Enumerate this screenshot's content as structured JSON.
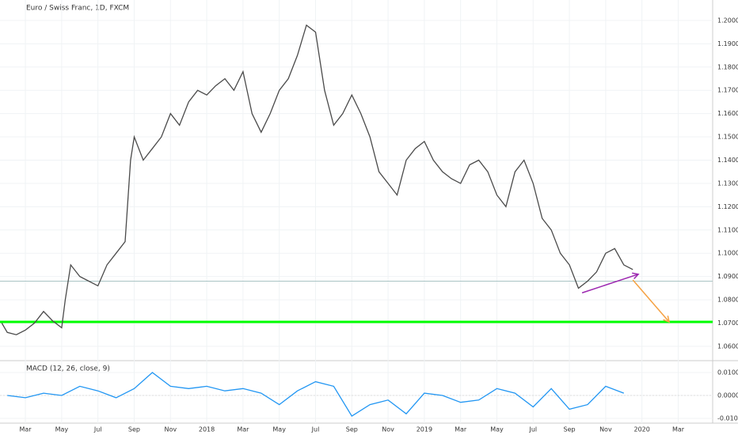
{
  "chart_data": [
    {
      "type": "line",
      "title": "Euro / Swiss Franc, 1D, FXCM",
      "x": [
        0.7,
        1.0,
        1.5,
        2.0,
        2.5,
        3.0,
        3.5,
        4.0,
        4.2,
        4.5,
        5.0,
        5.5,
        6.0,
        6.5,
        7.0,
        7.5,
        7.8,
        8.0,
        8.5,
        9.0,
        9.5,
        10.0,
        10.5,
        11.0,
        11.5,
        12.0,
        12.5,
        13.0,
        13.5,
        14.0,
        14.5,
        15.0,
        15.5,
        16.0,
        16.5,
        17.0,
        17.5,
        18.0,
        18.5,
        19.0,
        19.5,
        20.0,
        20.5,
        21.0,
        21.5,
        22.0,
        22.5,
        23.0,
        23.5,
        24.0,
        24.5,
        25.0,
        25.5,
        26.0,
        26.5,
        27.0,
        27.5,
        28.0,
        28.5,
        29.0,
        29.5,
        30.0,
        30.5,
        31.0,
        31.5,
        32.0,
        32.5,
        33.0,
        33.5,
        34.0,
        34.5,
        35.0,
        35.5
      ],
      "series": [
        {
          "color": "#4a4a4a",
          "values": [
            1.07,
            1.066,
            1.065,
            1.067,
            1.07,
            1.075,
            1.071,
            1.068,
            1.08,
            1.095,
            1.09,
            1.088,
            1.086,
            1.095,
            1.1,
            1.105,
            1.14,
            1.15,
            1.14,
            1.145,
            1.15,
            1.16,
            1.155,
            1.165,
            1.17,
            1.168,
            1.172,
            1.175,
            1.17,
            1.178,
            1.16,
            1.152,
            1.16,
            1.17,
            1.175,
            1.185,
            1.198,
            1.195,
            1.17,
            1.155,
            1.16,
            1.168,
            1.16,
            1.15,
            1.135,
            1.13,
            1.125,
            1.14,
            1.145,
            1.148,
            1.14,
            1.135,
            1.132,
            1.13,
            1.138,
            1.14,
            1.135,
            1.125,
            1.12,
            1.135,
            1.14,
            1.13,
            1.115,
            1.11,
            1.1,
            1.095,
            1.085,
            1.088,
            1.092,
            1.1,
            1.102,
            1.095,
            1.093
          ]
        }
      ],
      "xlim": [
        0.6,
        39.9
      ],
      "ylim": [
        1.0542,
        1.2088
      ],
      "xticks": [
        {
          "value": 2,
          "label": "Mar"
        },
        {
          "value": 4,
          "label": "May"
        },
        {
          "value": 6,
          "label": "Jul"
        },
        {
          "value": 8,
          "label": "Sep"
        },
        {
          "value": 10,
          "label": "Nov"
        },
        {
          "value": 12,
          "label": "2018"
        },
        {
          "value": 14,
          "label": "Mar"
        },
        {
          "value": 16,
          "label": "May"
        },
        {
          "value": 18,
          "label": "Jul"
        },
        {
          "value": 20,
          "label": "Sep"
        },
        {
          "value": 22,
          "label": "Nov"
        },
        {
          "value": 24,
          "label": "2019"
        },
        {
          "value": 26,
          "label": "Mar"
        },
        {
          "value": 28,
          "label": "May"
        },
        {
          "value": 30,
          "label": "Jul"
        },
        {
          "value": 32,
          "label": "Sep"
        },
        {
          "value": 34,
          "label": "Nov"
        },
        {
          "value": 36,
          "label": "2020"
        },
        {
          "value": 38,
          "label": "Mar"
        }
      ],
      "yticks": [
        {
          "value": 1.06,
          "label": "1.06000"
        },
        {
          "value": 1.07,
          "label": "1.07000"
        },
        {
          "value": 1.08,
          "label": "1.08000"
        },
        {
          "value": 1.09,
          "label": "1.09000"
        },
        {
          "value": 1.1,
          "label": "1.10000"
        },
        {
          "value": 1.11,
          "label": "1.11000"
        },
        {
          "value": 1.12,
          "label": "1.12000"
        },
        {
          "value": 1.13,
          "label": "1.13000"
        },
        {
          "value": 1.14,
          "label": "1.14000"
        },
        {
          "value": 1.15,
          "label": "1.15000"
        },
        {
          "value": 1.16,
          "label": "1.16000"
        },
        {
          "value": 1.17,
          "label": "1.17000"
        },
        {
          "value": 1.18,
          "label": "1.18000"
        },
        {
          "value": 1.19,
          "label": "1.19000"
        },
        {
          "value": 1.2,
          "label": "1.20000"
        }
      ],
      "levels": [
        {
          "value": 1.0705,
          "color": "#00ff00"
        },
        {
          "value": 1.088,
          "color": "#a9c4c4"
        }
      ],
      "trendlines": [
        {
          "x": [
            32.7,
            35.8
          ],
          "y": [
            1.083,
            1.091
          ],
          "color": "#9c27b0"
        },
        {
          "x": [
            35.5,
            37.5
          ],
          "y": [
            1.0885,
            1.0705
          ],
          "color": "#f5a142"
        }
      ]
    },
    {
      "type": "line",
      "title": "MACD (12, 26, close, 9)",
      "x": [
        1,
        2,
        3,
        4,
        5,
        6,
        7,
        8,
        9,
        10,
        11,
        12,
        13,
        14,
        15,
        16,
        17,
        18,
        19,
        20,
        21,
        22,
        23,
        24,
        25,
        26,
        27,
        28,
        29,
        30,
        31,
        32,
        33,
        34,
        35
      ],
      "series": [
        {
          "color": "#2196f3",
          "values": [
            0.0,
            -0.001,
            0.001,
            0.0,
            0.004,
            0.002,
            -0.001,
            0.003,
            0.01,
            0.004,
            0.003,
            0.004,
            0.002,
            0.003,
            0.001,
            -0.004,
            0.002,
            0.006,
            0.004,
            -0.009,
            -0.004,
            -0.002,
            -0.008,
            0.001,
            0.0,
            -0.003,
            -0.002,
            0.003,
            0.001,
            -0.005,
            0.003,
            -0.006,
            -0.004,
            0.004,
            0.001
          ]
        }
      ],
      "xlim": [
        0.6,
        39.9
      ],
      "ylim": [
        -0.01207,
        0.01448
      ],
      "yticks": [
        {
          "value": 0.01,
          "label": "0.01000"
        },
        {
          "value": 0,
          "label": "0.00000"
        },
        {
          "value": -0.01,
          "label": "-0.01000"
        }
      ]
    }
  ]
}
